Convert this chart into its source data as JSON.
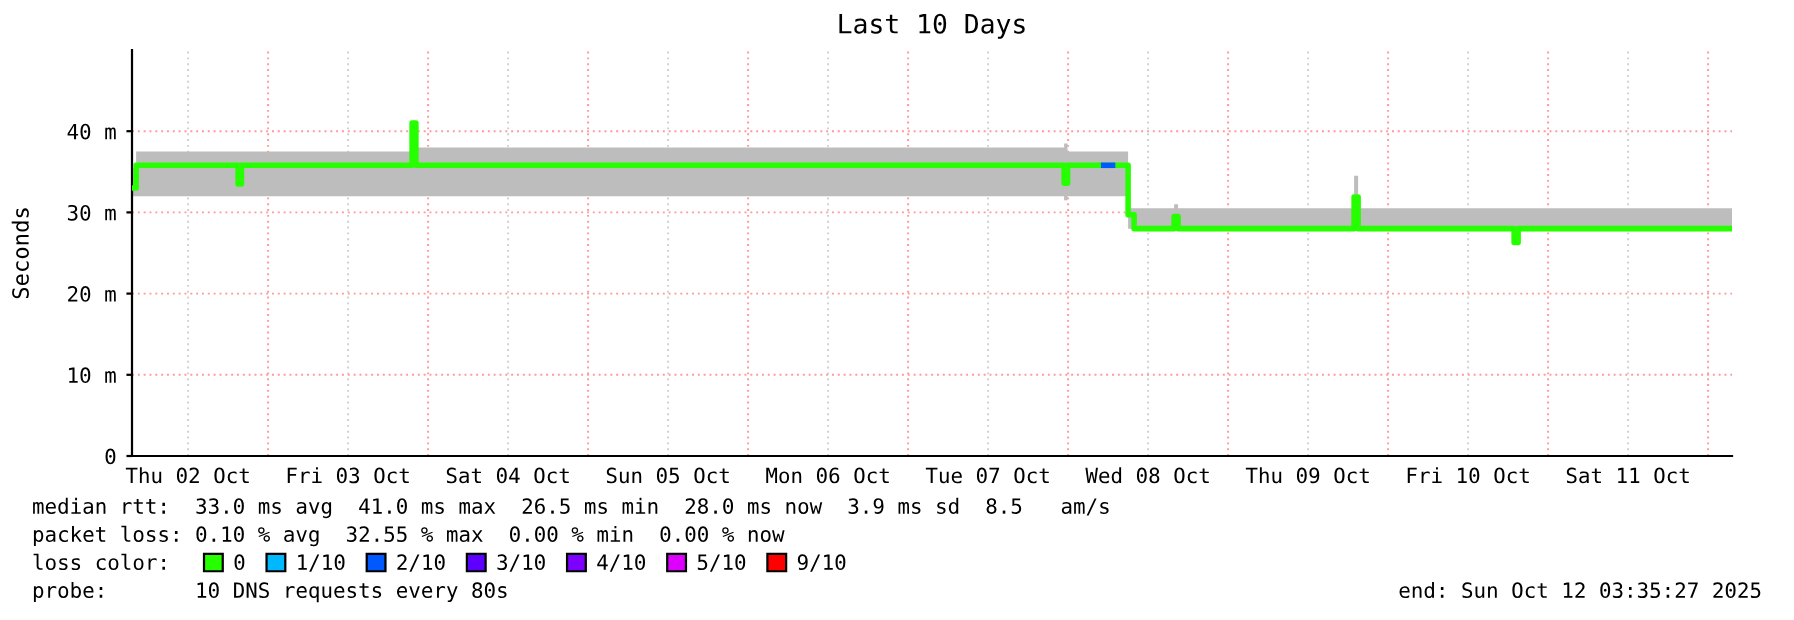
{
  "chart_data": {
    "type": "step",
    "title": "Last 10 Days",
    "ylabel": "Seconds",
    "legend_title": "loss color:",
    "xlim": [
      "2025-10-02T03:35",
      "2025-10-12T03:35"
    ],
    "xticks": [
      {
        "value": "2025-10-02T12:00",
        "label": "Thu 02 Oct"
      },
      {
        "value": "2025-10-03T00:00",
        "label": null
      },
      {
        "value": "2025-10-03T12:00",
        "label": "Fri 03 Oct"
      },
      {
        "value": "2025-10-04T00:00",
        "label": null
      },
      {
        "value": "2025-10-04T12:00",
        "label": "Sat 04 Oct"
      },
      {
        "value": "2025-10-05T00:00",
        "label": null
      },
      {
        "value": "2025-10-05T12:00",
        "label": "Sun 05 Oct"
      },
      {
        "value": "2025-10-06T00:00",
        "label": null
      },
      {
        "value": "2025-10-06T12:00",
        "label": "Mon 06 Oct"
      },
      {
        "value": "2025-10-07T00:00",
        "label": null
      },
      {
        "value": "2025-10-07T12:00",
        "label": "Tue 07 Oct"
      },
      {
        "value": "2025-10-08T00:00",
        "label": null
      },
      {
        "value": "2025-10-08T12:00",
        "label": "Wed 08 Oct"
      },
      {
        "value": "2025-10-09T00:00",
        "label": null
      },
      {
        "value": "2025-10-09T12:00",
        "label": "Thu 09 Oct"
      },
      {
        "value": "2025-10-10T00:00",
        "label": null
      },
      {
        "value": "2025-10-10T12:00",
        "label": "Fri 10 Oct"
      },
      {
        "value": "2025-10-11T00:00",
        "label": null
      },
      {
        "value": "2025-10-11T12:00",
        "label": "Sat 11 Oct"
      },
      {
        "value": "2025-10-12T00:00",
        "label": null
      }
    ],
    "ylim": [
      0,
      50
    ],
    "yticks": [
      0,
      {
        "value": 10,
        "label": "10 m"
      },
      {
        "value": 20,
        "label": "20 m"
      },
      {
        "value": 30,
        "label": "30 m"
      },
      {
        "value": 40,
        "label": "40 m"
      }
    ],
    "grid": true,
    "legend": "bottom",
    "x": [
      "2025-10-02T03:35",
      "2025-10-02T04:12",
      "2025-10-02T19:30",
      "2025-10-02T20:00",
      "2025-10-03T21:36",
      "2025-10-03T22:10",
      "2025-10-07T23:24",
      "2025-10-07T23:55",
      "2025-10-08T09:00",
      "2025-10-08T09:54",
      "2025-10-08T15:54",
      "2025-10-08T16:30",
      "2025-10-09T18:54",
      "2025-10-09T19:30",
      "2025-10-10T18:54",
      "2025-10-10T19:30",
      "2025-10-12T03:35"
    ],
    "series": [
      {
        "name": "0",
        "color": "#26ff00",
        "values": [
          33.0,
          35.8,
          33.5,
          35.8,
          41.0,
          35.8,
          33.6,
          35.8,
          29.7,
          28.0,
          29.5,
          28.0,
          31.9,
          28.0,
          26.3,
          28.0,
          28.0
        ],
        "lower": [
          32.0,
          32.0,
          32.0,
          32.0,
          32.0,
          32.0,
          31.5,
          32.0,
          28.0,
          28.0,
          28.0,
          28.0,
          28.0,
          28.0,
          26.3,
          28.0,
          28.0
        ],
        "upper": [
          35.5,
          37.5,
          37.5,
          37.5,
          41.0,
          38.0,
          38.5,
          37.5,
          30.5,
          30.5,
          31.0,
          30.5,
          34.5,
          30.5,
          30.5,
          30.5,
          30.5
        ]
      },
      {
        "name": "1/10",
        "color": "#00b8ff",
        "values": [
          null,
          null,
          null,
          null,
          null,
          null,
          null,
          null,
          null,
          null,
          null,
          null,
          null,
          null,
          null,
          null,
          null
        ]
      },
      {
        "name": "2/10",
        "color": "#0059ff",
        "type": "line",
        "x": [
          "2025-10-08T05:20",
          "2025-10-08T06:40"
        ],
        "values": [
          35.8,
          35.8
        ]
      },
      {
        "name": "3/10",
        "color": "#5e00ff",
        "values": [
          null,
          null,
          null,
          null,
          null,
          null,
          null,
          null,
          null,
          null,
          null,
          null,
          null,
          null,
          null,
          null,
          null
        ]
      },
      {
        "name": "4/10",
        "color": "#7e00ff",
        "values": [
          null,
          null,
          null,
          null,
          null,
          null,
          null,
          null,
          null,
          null,
          null,
          null,
          null,
          null,
          null,
          null,
          null
        ]
      },
      {
        "name": "5/10",
        "color": "#dd00ff",
        "values": [
          null,
          null,
          null,
          null,
          null,
          null,
          null,
          null,
          null,
          null,
          null,
          null,
          null,
          null,
          null,
          null,
          null
        ]
      },
      {
        "name": "9/10",
        "color": "#ff0000",
        "values": [
          null,
          null,
          null,
          null,
          null,
          null,
          null,
          null,
          null,
          null,
          null,
          null,
          null,
          null,
          null,
          null,
          null
        ]
      }
    ],
    "annotations": [
      "median rtt:  33.0 ms avg  41.0 ms max  26.5 ms min  28.0 ms now  3.9 ms sd  8.5   am/s",
      "packet loss: 0.10 % avg  32.55 % max  0.00 % min  0.00 % now",
      "probe:       10 DNS requests every 80s",
      "end: Sun Oct 12 03:35:27 2025"
    ]
  }
}
